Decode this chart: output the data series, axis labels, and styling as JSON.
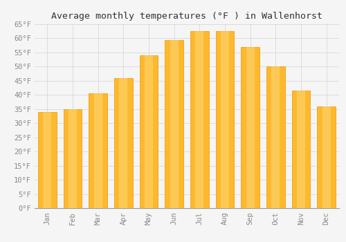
{
  "title": "Average monthly temperatures (°F ) in Wallenhorst",
  "months": [
    "Jan",
    "Feb",
    "Mar",
    "Apr",
    "May",
    "Jun",
    "Jul",
    "Aug",
    "Sep",
    "Oct",
    "Nov",
    "Dec"
  ],
  "values": [
    34,
    35,
    40.5,
    46,
    54,
    59.5,
    62.5,
    62.5,
    57,
    50,
    41.5,
    36
  ],
  "bar_color_main": "#FDB92E",
  "bar_color_edge": "#F0A010",
  "ylim": [
    0,
    65
  ],
  "yticks": [
    0,
    5,
    10,
    15,
    20,
    25,
    30,
    35,
    40,
    45,
    50,
    55,
    60,
    65
  ],
  "background_color": "#f5f5f5",
  "grid_color": "#d8d8d8",
  "title_fontsize": 9.5,
  "tick_fontsize": 7.5,
  "font_family": "monospace",
  "tick_color": "#888888",
  "bar_width": 0.72
}
